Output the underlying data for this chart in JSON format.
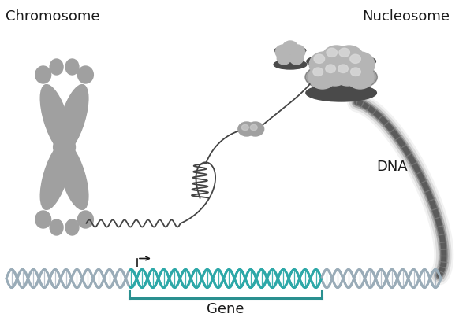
{
  "bg_color": "#ffffff",
  "chromosome_color": "#a0a0a0",
  "fiber_color": "#555555",
  "fiber_light_color": "#999999",
  "nuc_sphere_color": "#b8b8b8",
  "nuc_band_color": "#555555",
  "dna_gray_color": "#9aacb8",
  "dna_teal_color": "#2da8a8",
  "dna_bar_gray": "#8899aa",
  "dna_bar_teal": "#2da8a8",
  "text_color": "#1a1a1a",
  "gene_bracket_color": "#2a9090",
  "label_chromosome": "Chromosome",
  "label_nucleosome": "Nucleosome",
  "label_dna": "DNA",
  "label_gene": "Gene",
  "small_bead_color": "#a0a0a0",
  "wavy_color": "#555555",
  "loop_color": "#444444"
}
